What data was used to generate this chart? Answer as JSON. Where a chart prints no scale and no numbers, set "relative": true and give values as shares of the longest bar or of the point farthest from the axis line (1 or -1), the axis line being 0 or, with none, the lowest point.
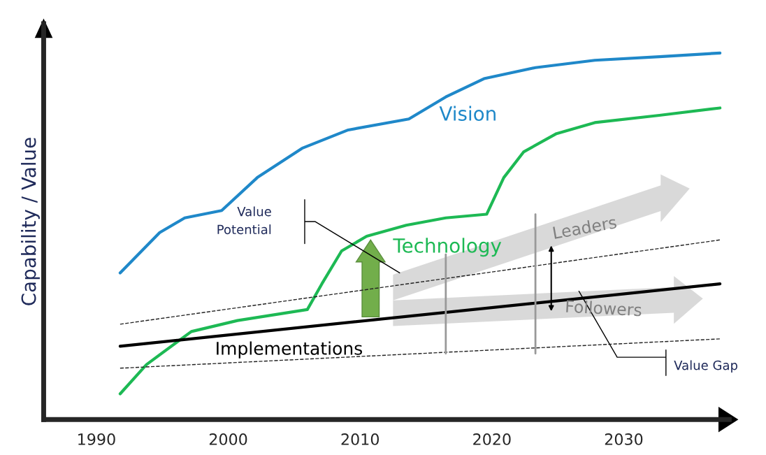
{
  "chart_data": {
    "type": "line",
    "ylabel": "Capability / Value",
    "relative": true,
    "xlim": [
      1986,
      2038
    ],
    "xticks": [
      1990,
      2000,
      2010,
      2020,
      2030
    ],
    "grid": false,
    "series": [
      {
        "name": "Vision",
        "color": "#1f88c9",
        "x": [
          1991.8,
          1994.8,
          1996.7,
          1999.5,
          2002.2,
          2005.6,
          2009.1,
          2013.7,
          2016.5,
          2019.4,
          2023.3,
          2027.8,
          2032.7,
          2037.3
        ],
        "values": [
          0.4,
          0.51,
          0.55,
          0.57,
          0.66,
          0.74,
          0.79,
          0.82,
          0.88,
          0.93,
          0.96,
          0.98,
          0.99,
          1.0
        ]
      },
      {
        "name": "Technology",
        "color": "#1db954",
        "x": [
          1991.8,
          1993.8,
          1997.2,
          2000.7,
          2006.0,
          2007.1,
          2008.6,
          2010.5,
          2013.5,
          2016.5,
          2019.6,
          2020.9,
          2022.4,
          2024.9,
          2027.8,
          2032.7,
          2037.3
        ],
        "values": [
          0.07,
          0.15,
          0.24,
          0.27,
          0.3,
          0.37,
          0.46,
          0.5,
          0.53,
          0.55,
          0.56,
          0.66,
          0.73,
          0.78,
          0.81,
          0.83,
          0.85
        ]
      },
      {
        "name": "Implementations",
        "color": "#000000",
        "x": [
          1991.8,
          2037.3
        ],
        "values": [
          0.2,
          0.37
        ]
      },
      {
        "color": "#222222",
        "line_style": "dashed",
        "x": [
          1991.8,
          2037.3
        ],
        "values": [
          0.26,
          0.49
        ]
      },
      {
        "color": "#222222",
        "line_style": "dashed",
        "x": [
          1991.8,
          2037.3
        ],
        "values": [
          0.14,
          0.22
        ]
      }
    ],
    "annotations": [
      "Value\nPotential",
      "Leaders",
      "Followers",
      "Value Gap"
    ]
  }
}
